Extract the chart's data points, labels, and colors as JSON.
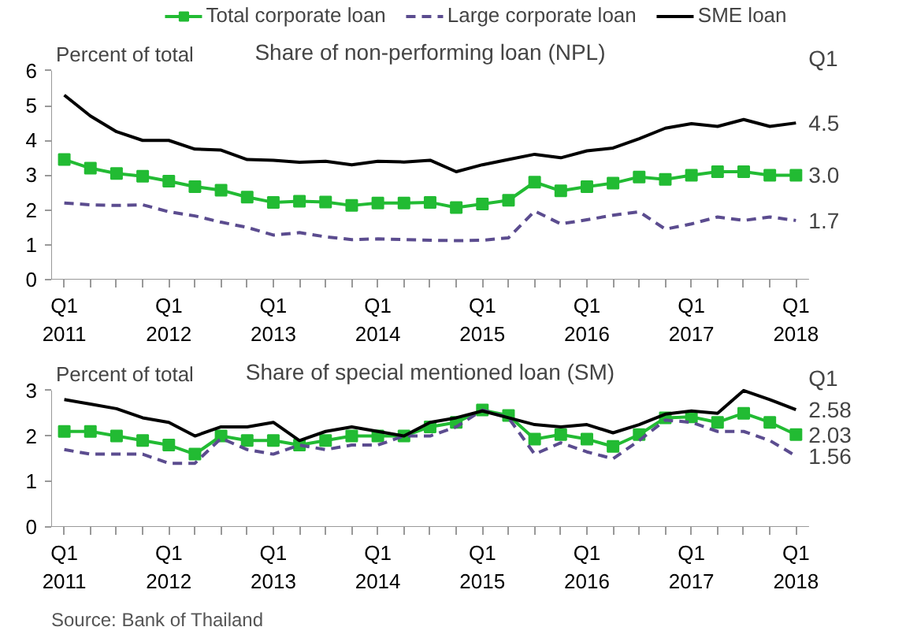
{
  "chart_data": [
    {
      "type": "line",
      "title": "Share of non-performing loan (NPL)",
      "ylabel": "Percent of total",
      "categories": [
        "Q1\n2011",
        null,
        null,
        null,
        "Q1\n2012",
        null,
        null,
        null,
        "Q1\n2013",
        null,
        null,
        null,
        "Q1\n2014",
        null,
        null,
        null,
        "Q1\n2015",
        null,
        null,
        null,
        "Q1\n2016",
        null,
        null,
        null,
        "Q1\n2017",
        null,
        null,
        null,
        "Q1\n2018"
      ],
      "series": [
        {
          "name": "Total corporate loan",
          "color": "#22bb33",
          "marker": "square",
          "line_style": "solid",
          "values": [
            3.45,
            3.2,
            3.05,
            2.97,
            2.83,
            2.67,
            2.57,
            2.37,
            2.22,
            2.25,
            2.23,
            2.13,
            2.2,
            2.2,
            2.22,
            2.07,
            2.17,
            2.28,
            2.8,
            2.55,
            2.67,
            2.77,
            2.95,
            2.88,
            3.0,
            3.1,
            3.1,
            3.0,
            3.0
          ]
        },
        {
          "name": "Large corporate loan",
          "color": "#5b4c8f",
          "marker": "none",
          "line_style": "dashed",
          "values": [
            2.2,
            2.15,
            2.13,
            2.15,
            1.95,
            1.83,
            1.65,
            1.5,
            1.28,
            1.35,
            1.23,
            1.15,
            1.17,
            1.15,
            1.13,
            1.12,
            1.13,
            1.2,
            1.97,
            1.6,
            1.72,
            1.85,
            1.95,
            1.45,
            1.6,
            1.8,
            1.7,
            1.8,
            1.7
          ]
        },
        {
          "name": "SME loan",
          "color": "#000000",
          "marker": "none",
          "line_style": "solid",
          "values": [
            5.3,
            4.7,
            4.25,
            4.0,
            4.0,
            3.75,
            3.72,
            3.45,
            3.43,
            3.37,
            3.4,
            3.3,
            3.4,
            3.38,
            3.43,
            3.1,
            3.3,
            3.45,
            3.6,
            3.5,
            3.7,
            3.78,
            4.05,
            4.35,
            4.48,
            4.4,
            4.6,
            4.4,
            4.5
          ]
        }
      ],
      "ylim": [
        0,
        6
      ],
      "yticks": [
        0,
        1,
        2,
        3,
        4,
        5,
        6
      ],
      "grid": false,
      "legend": "top",
      "annotations": [
        "Q1",
        {
          "text": "4.5",
          "x": "Q1\n2018",
          "y": 4.5
        },
        {
          "text": "3.0",
          "x": "Q1\n2018",
          "y": 3.0
        },
        {
          "text": "1.7",
          "x": "Q1\n2018",
          "y": 1.7
        }
      ]
    },
    {
      "type": "line",
      "title": "Share of special mentioned loan (SM)",
      "ylabel": "Percent of total",
      "categories": [
        "Q1\n2011",
        null,
        null,
        null,
        "Q1\n2012",
        null,
        null,
        null,
        "Q1\n2013",
        null,
        null,
        null,
        "Q1\n2014",
        null,
        null,
        null,
        "Q1\n2015",
        null,
        null,
        null,
        "Q1\n2016",
        null,
        null,
        null,
        "Q1\n2017",
        null,
        null,
        null,
        "Q1\n2018"
      ],
      "series": [
        {
          "color": "#22bb33",
          "marker": "square",
          "line_style": "solid",
          "values": [
            2.1,
            2.1,
            2.0,
            1.9,
            1.8,
            1.6,
            2.0,
            1.9,
            1.9,
            1.8,
            1.9,
            2.0,
            2.0,
            2.0,
            2.2,
            2.3,
            2.57,
            2.45,
            1.93,
            2.03,
            1.93,
            1.77,
            2.03,
            2.4,
            2.42,
            2.3,
            2.5,
            2.3,
            2.03
          ]
        },
        {
          "color": "#5b4c8f",
          "marker": "none",
          "line_style": "dashed",
          "values": [
            1.7,
            1.6,
            1.6,
            1.6,
            1.4,
            1.4,
            1.95,
            1.7,
            1.6,
            1.8,
            1.7,
            1.8,
            1.8,
            2.0,
            2.0,
            2.2,
            2.57,
            2.4,
            1.6,
            1.85,
            1.65,
            1.5,
            1.9,
            2.35,
            2.3,
            2.1,
            2.1,
            1.9,
            1.56
          ]
        },
        {
          "color": "#000000",
          "marker": "none",
          "line_style": "solid",
          "values": [
            2.8,
            2.7,
            2.6,
            2.4,
            2.3,
            2.0,
            2.2,
            2.2,
            2.3,
            1.9,
            2.1,
            2.2,
            2.1,
            2.0,
            2.3,
            2.4,
            2.55,
            2.4,
            2.25,
            2.2,
            2.25,
            2.07,
            2.25,
            2.48,
            2.55,
            2.5,
            3.0,
            2.8,
            2.58
          ]
        }
      ],
      "ylim": [
        0,
        3
      ],
      "yticks": [
        0,
        1,
        2,
        3
      ],
      "grid": false,
      "legend": false,
      "annotations": [
        "Q1",
        {
          "text": "2.58",
          "x": "Q1\n2018",
          "y": 2.58
        },
        {
          "text": "2.03",
          "x": "Q1\n2018",
          "y": 2.03
        },
        {
          "text": "1.56",
          "x": "Q1\n2018",
          "y": 1.56
        },
        "Source: Bank of Thailand"
      ]
    }
  ]
}
